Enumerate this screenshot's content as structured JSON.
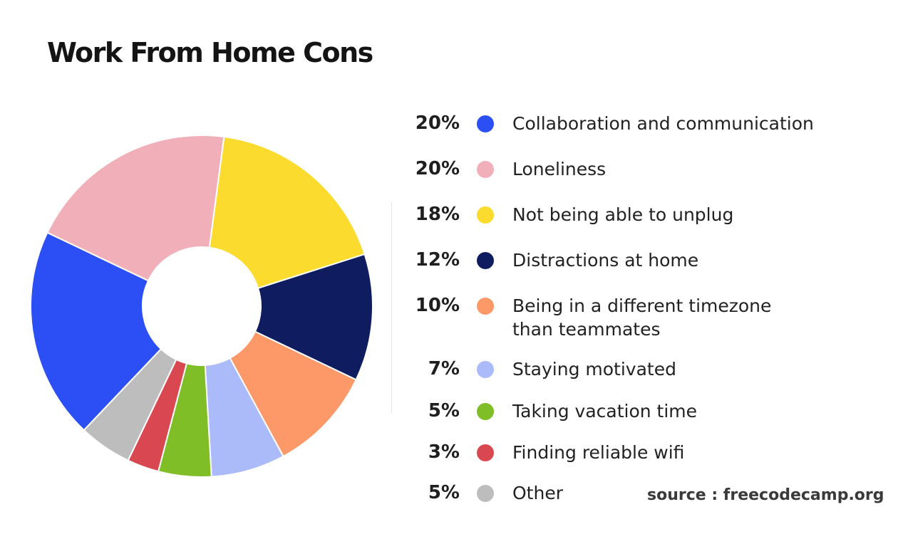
{
  "colors": {
    "collaboration": "#2b4ff5",
    "loneliness": "#f1b0b9",
    "unplug": "#fbdc2e",
    "distractions": "#101c60",
    "timezone": "#fd9868",
    "motivated": "#abbbfa",
    "vacation": "#7fbe26",
    "wifi": "#d94851",
    "other": "#bdbdbd"
  },
  "chart_data": {
    "type": "pie",
    "title": "Work From Home Cons",
    "legend_position": "right",
    "donut": true,
    "slices": [
      {
        "label": "Collaboration and communication",
        "value": 20,
        "display": "20%",
        "color": "#2b4ff5"
      },
      {
        "label": "Loneliness",
        "value": 20,
        "display": "20%",
        "color": "#f1b0b9"
      },
      {
        "label": "Not being able to unplug",
        "value": 18,
        "display": "18%",
        "color": "#fbdc2e"
      },
      {
        "label": "Distractions at home",
        "value": 12,
        "display": "12%",
        "color": "#101c60"
      },
      {
        "label": "Being in a different timezone than teammates",
        "value": 10,
        "display": "10%",
        "color": "#fd9868"
      },
      {
        "label": "Staying motivated",
        "value": 7,
        "display": "7%",
        "color": "#abbbfa"
      },
      {
        "label": "Taking vacation time",
        "value": 5,
        "display": "5%",
        "color": "#7fbe26"
      },
      {
        "label": "Finding reliable wifi",
        "value": 3,
        "display": "3%",
        "color": "#d94851"
      },
      {
        "label": "Other",
        "value": 5,
        "display": "5%",
        "color": "#bdbdbd"
      }
    ]
  },
  "source": "source : freecodecamp.org"
}
